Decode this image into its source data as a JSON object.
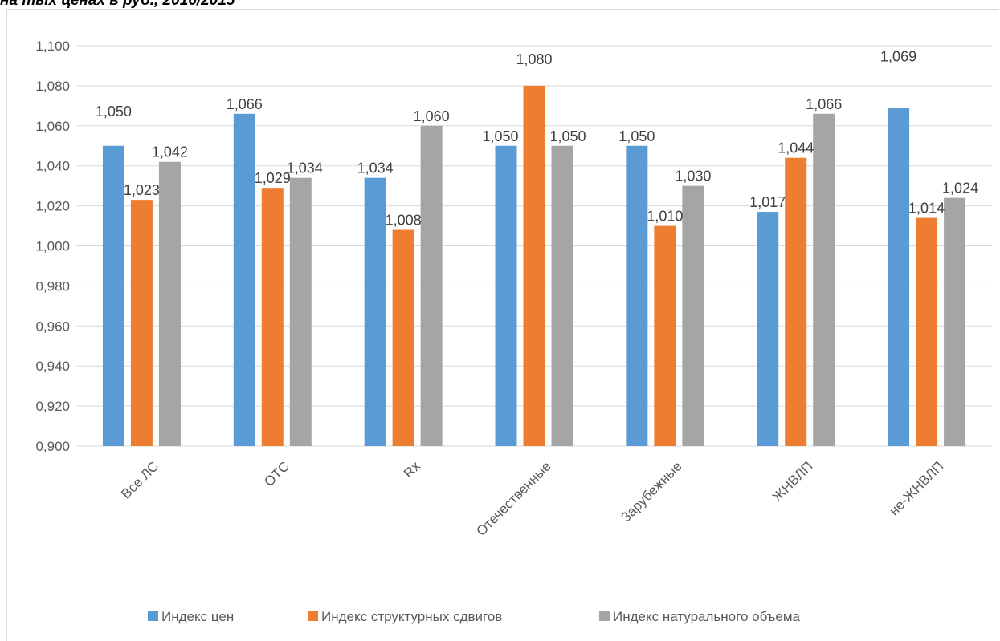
{
  "caption_fragment": "на тых ценах в руб., 2016/2015",
  "chart_data": {
    "type": "bar",
    "title": "",
    "xlabel": "",
    "ylabel": "",
    "ylim": [
      0.9,
      1.1
    ],
    "ytick_step": 0.02,
    "ytick_labels": [
      "0,900",
      "0,920",
      "0,940",
      "0,960",
      "0,980",
      "1,000",
      "1,020",
      "1,040",
      "1,060",
      "1,080",
      "1,100"
    ],
    "grid": true,
    "legend": "bottom",
    "categories": [
      "Все ЛС",
      "ОТС",
      "Rx",
      "Отечественные",
      "Зарубежные",
      "ЖНВЛП",
      "не-ЖНВЛП"
    ],
    "series": [
      {
        "name": "Индекс цен",
        "color": "#5b9bd5",
        "values": [
          1.05,
          1.066,
          1.034,
          1.05,
          1.05,
          1.017,
          1.069
        ],
        "labels": [
          "1,050",
          "1,066",
          "1,034",
          "1,050",
          "1,050",
          "1,017",
          "1,069"
        ]
      },
      {
        "name": "Индекс структурных сдвигов",
        "color": "#ed7d31",
        "values": [
          1.023,
          1.029,
          1.008,
          1.08,
          1.01,
          1.044,
          1.014
        ],
        "labels": [
          "1,023",
          "1,029",
          "1,008",
          "1,080",
          "1,010",
          "1,044",
          "1,014"
        ]
      },
      {
        "name": "Индекс натурального объема",
        "color": "#a5a5a5",
        "values": [
          1.042,
          1.034,
          1.06,
          1.05,
          1.03,
          1.066,
          1.024
        ],
        "labels": [
          "1,042",
          "1,034",
          "1,060",
          "1,050",
          "1,030",
          "1,066",
          "1,024"
        ]
      }
    ]
  }
}
